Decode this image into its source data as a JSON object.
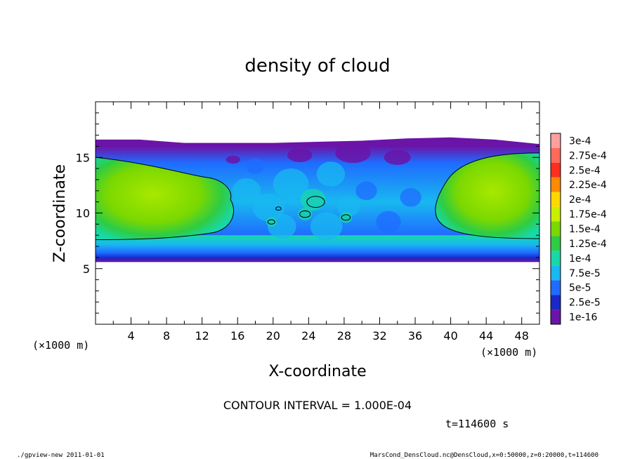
{
  "chart_data": {
    "type": "heatmap",
    "title": "density of cloud",
    "xlabel": "X-coordinate",
    "ylabel": "Z-coordinate",
    "x_unit": "(×1000 m)",
    "z_unit": "(×1000 m)",
    "xlim": [
      0,
      50
    ],
    "ylim": [
      0,
      20
    ],
    "x_ticks": [
      4,
      8,
      12,
      16,
      20,
      24,
      28,
      32,
      36,
      40,
      44,
      48
    ],
    "z_ticks": [
      5,
      10,
      15
    ],
    "colorbar": {
      "labels": [
        "3e-4",
        "2.75e-4",
        "2.5e-4",
        "2.25e-4",
        "2e-4",
        "1.75e-4",
        "1.5e-4",
        "1.25e-4",
        "1e-4",
        "7.5e-5",
        "5e-5",
        "2.5e-5",
        "1e-16"
      ],
      "colors": [
        "#ff9f9f",
        "#ff6a5a",
        "#ff2e1e",
        "#ff8a00",
        "#ffd800",
        "#c8ee00",
        "#7ad800",
        "#2ecc44",
        "#18d8a8",
        "#18b8f0",
        "#1f6cff",
        "#1a28c8",
        "#6a14a8"
      ]
    },
    "contour_interval_text": "CONTOUR INTERVAL = 1.000E-04",
    "time_text": "t=114600 s",
    "cloud_layer": {
      "z_bottom": 5.6,
      "z_top_edge": [
        16.6,
        16.6,
        16.3,
        16.3,
        16.3,
        16.4,
        16.5,
        16.7,
        16.8,
        16.6,
        16.2
      ],
      "z_top_edge_x": [
        0,
        5,
        10,
        15,
        20,
        25,
        30,
        35,
        40,
        45,
        50
      ],
      "high_density_left": {
        "x_range": [
          0,
          16
        ],
        "z_range": [
          7.5,
          15
        ]
      },
      "high_density_right": {
        "x_range": [
          38,
          50
        ],
        "z_range": [
          7.5,
          15.5
        ]
      }
    }
  },
  "footer": {
    "left": "./gpview-new 2011-01-01",
    "right": "MarsCond_DensCloud.nc@DensCloud,x=0:50000,z=0:20000,t=114600"
  }
}
